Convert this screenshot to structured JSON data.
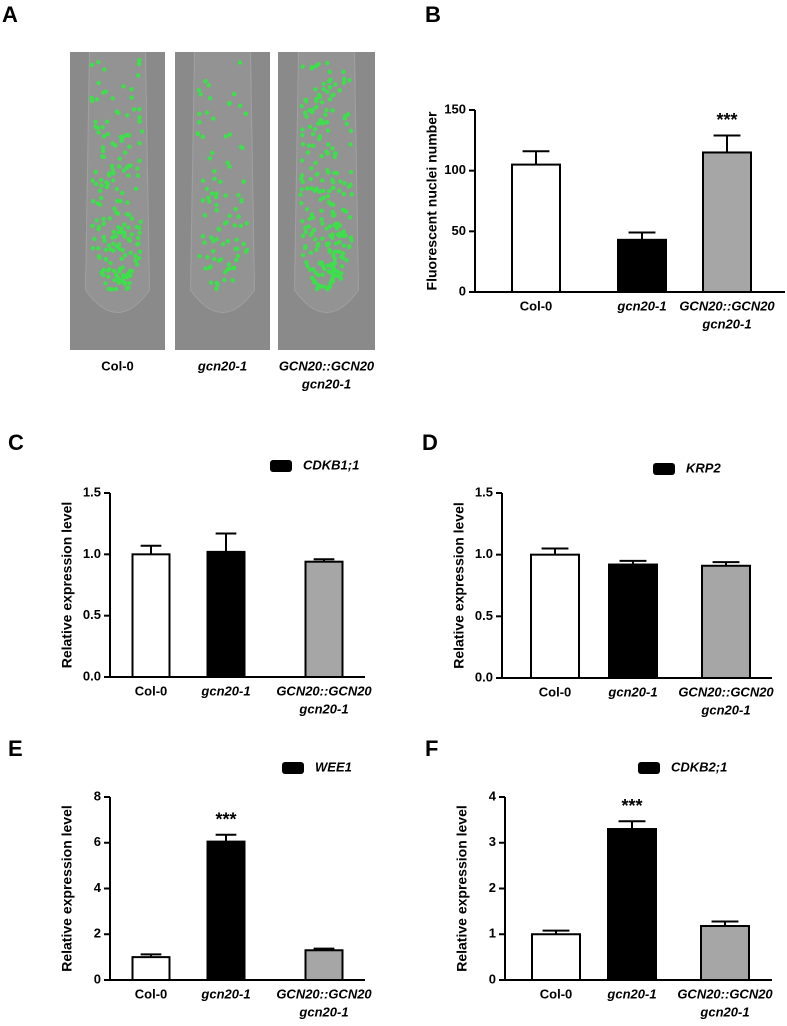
{
  "panel_a": {
    "label": "A",
    "captions": [
      "Col-0",
      "gcn20-1",
      [
        "GCN20::GCN20",
        "gcn20-1"
      ]
    ]
  },
  "chart_data": [
    {
      "type": "bar",
      "panel": "B",
      "ylabel": "Fluorescent nuclei number",
      "annotation": "***",
      "categories": [
        "Col-0",
        "gcn20-1",
        [
          "GCN20::GCN20",
          "gcn20-1"
        ]
      ],
      "series": [
        {
          "values": [
            105,
            43,
            115
          ],
          "errors": [
            11,
            6,
            14
          ],
          "bar_colors": [
            "#ffffff",
            "#000000",
            "#a6a6a6"
          ]
        }
      ],
      "ylim": [
        0,
        150
      ],
      "yticks": [
        0,
        50,
        100,
        150
      ]
    },
    {
      "type": "bar",
      "panel": "C",
      "ylabel": "Relative expression level",
      "categories": [
        "Col-0",
        "gcn20-1",
        [
          "GCN20::GCN20",
          "gcn20-1"
        ]
      ],
      "series": [
        {
          "name": "CDKB1;1",
          "color": "#000000",
          "values": [
            1.0,
            1.02,
            0.94
          ],
          "errors": [
            0.07,
            0.15,
            0.02
          ],
          "bar_colors": [
            "#ffffff",
            "#000000",
            "#a6a6a6"
          ]
        }
      ],
      "ylim": [
        0,
        1.5
      ],
      "yticks": [
        {
          "value": 0,
          "label": "0.0"
        },
        0.5,
        {
          "value": 1,
          "label": "1.0"
        },
        1.5
      ]
    },
    {
      "type": "bar",
      "panel": "D",
      "ylabel": "Relative expression level",
      "categories": [
        "Col-0",
        "gcn20-1",
        [
          "GCN20::GCN20",
          "gcn20-1"
        ]
      ],
      "series": [
        {
          "name": "KRP2",
          "color": "#000000",
          "values": [
            1.0,
            0.92,
            0.91
          ],
          "errors": [
            0.05,
            0.03,
            0.03
          ],
          "bar_colors": [
            "#ffffff",
            "#000000",
            "#a6a6a6"
          ]
        }
      ],
      "ylim": [
        0,
        1.5
      ],
      "yticks": [
        {
          "value": 0,
          "label": "0.0"
        },
        0.5,
        {
          "value": 1,
          "label": "1.0"
        },
        1.5
      ]
    },
    {
      "type": "bar",
      "panel": "E",
      "ylabel": "Relative expression level",
      "annotation": "***",
      "categories": [
        "Col-0",
        "gcn20-1",
        [
          "GCN20::GCN20",
          "gcn20-1"
        ]
      ],
      "series": [
        {
          "name": "WEE1",
          "color": "#000000",
          "values": [
            1.0,
            6.05,
            1.3
          ],
          "errors": [
            0.12,
            0.3,
            0.07
          ],
          "bar_colors": [
            "#ffffff",
            "#000000",
            "#a6a6a6"
          ]
        }
      ],
      "ylim": [
        0,
        8
      ],
      "yticks": [
        0,
        2,
        4,
        6,
        8
      ]
    },
    {
      "type": "bar",
      "panel": "F",
      "ylabel": "Relative expression level",
      "annotation": "***",
      "categories": [
        "Col-0",
        "gcn20-1",
        [
          "GCN20::GCN20",
          "gcn20-1"
        ]
      ],
      "series": [
        {
          "name": "CDKB2;1",
          "color": "#000000",
          "values": [
            1.0,
            3.3,
            1.18
          ],
          "errors": [
            0.08,
            0.17,
            0.1
          ],
          "bar_colors": [
            "#ffffff",
            "#000000",
            "#a6a6a6"
          ]
        }
      ],
      "ylim": [
        0,
        4
      ],
      "yticks": [
        0,
        1,
        2,
        3,
        4
      ]
    }
  ]
}
